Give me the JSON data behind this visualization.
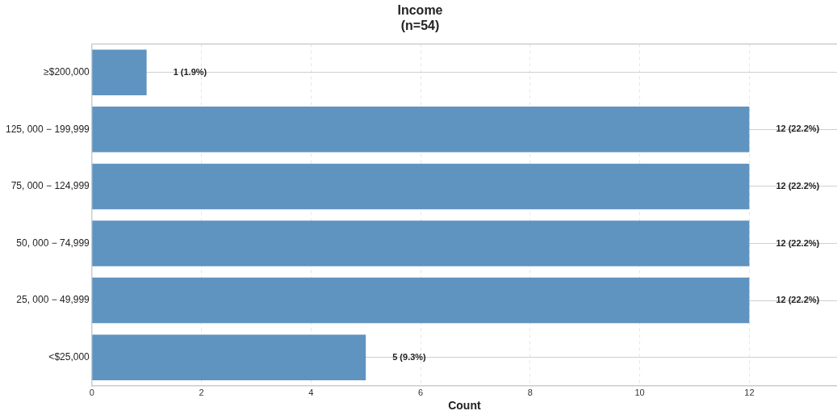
{
  "chart_data": {
    "type": "bar",
    "orientation": "horizontal",
    "title": "Income\n(n=54)",
    "xlabel": "Count",
    "categories": [
      "≥$200,000",
      "125, 000 − 199,999",
      "75, 000 − 124,999",
      "50, 000 − 74,999",
      "25, 000 − 49,999",
      "<$25,000"
    ],
    "values": [
      1,
      12,
      12,
      12,
      12,
      5
    ],
    "color": "#5f93c0",
    "value_labels": [
      "1 (1.9%)",
      "12 (22.2%)",
      "12 (22.2%)",
      "12 (22.2%)",
      "12 (22.2%)",
      "5 (9.3%)"
    ],
    "xlim": [
      0,
      13.6
    ],
    "xticks": [
      0,
      2,
      4,
      6,
      8,
      10,
      12
    ],
    "grid": true,
    "legend": false
  }
}
